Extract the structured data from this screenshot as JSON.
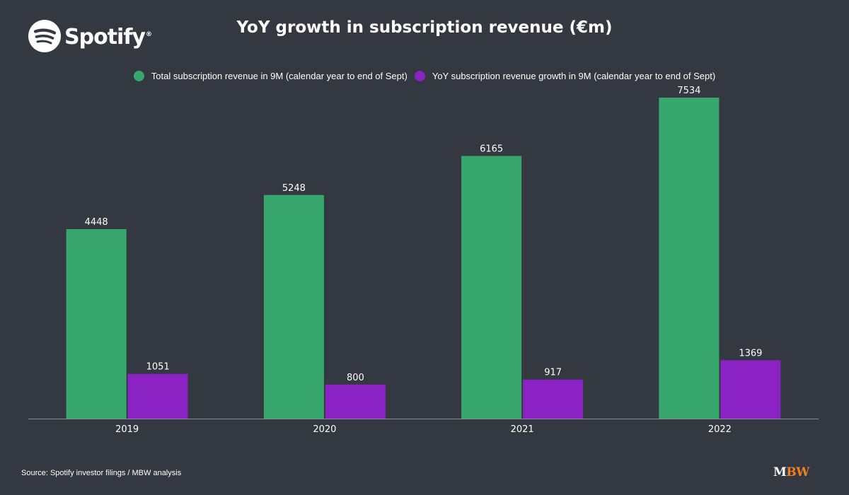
{
  "brand": {
    "name": "Spotify",
    "registered_mark": "®"
  },
  "title": "YoY growth in subscription revenue (€m)",
  "source": "Source: Spotify investor filings / MBW analysis",
  "watermark": {
    "m": "M",
    "bw": "BW"
  },
  "colors": {
    "background": "#343841",
    "total": "#38a76d",
    "growth": "#8b22c3",
    "axis": "#8a8e96",
    "text": "#ffffff"
  },
  "chart_data": {
    "type": "bar",
    "categories": [
      "2019",
      "2020",
      "2021",
      "2022"
    ],
    "series": [
      {
        "name": "Total subscription revenue in 9M (calendar year to end of Sept)",
        "values": [
          4448,
          5248,
          6165,
          7534
        ]
      },
      {
        "name": "YoY subscription revenue growth in 9M (calendar year to end of Sept)",
        "values": [
          1051,
          800,
          917,
          1369
        ]
      }
    ],
    "ylim": [
      0,
      7900
    ],
    "data_labels": true,
    "grid": false,
    "legend": "top-center"
  }
}
